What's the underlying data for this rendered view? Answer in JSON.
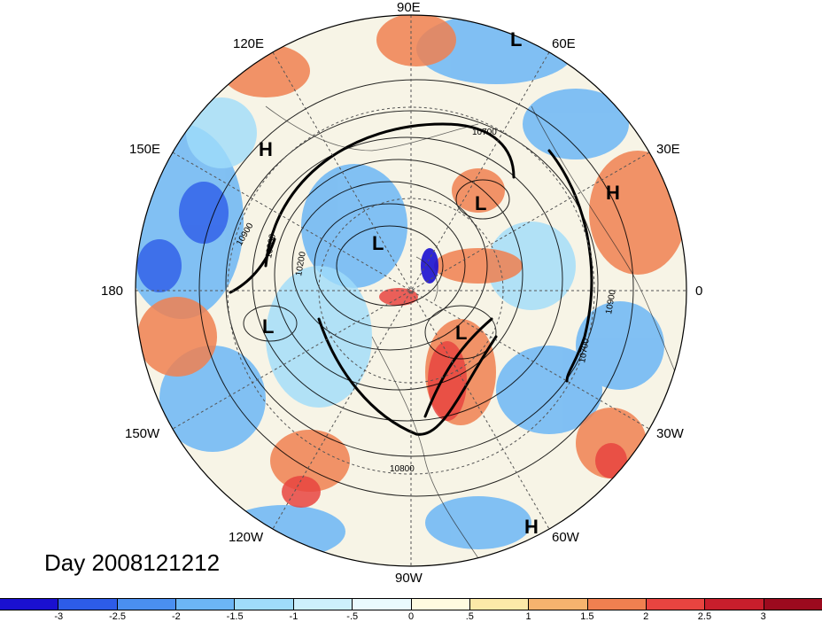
{
  "figure": {
    "day_label": "Day 2008121212",
    "longitude_labels": {
      "lon_90e": "90E",
      "lon_60e": "60E",
      "lon_30e": "30E",
      "lon_0": "0",
      "lon_30w": "30W",
      "lon_60w": "60W",
      "lon_90w": "90W",
      "lon_120w": "120W",
      "lon_150w": "150W",
      "lon_180": "180",
      "lon_150e": "150E",
      "lon_120e": "120E"
    },
    "pressure_centers": [
      {
        "type": "L",
        "label": "L"
      },
      {
        "type": "L",
        "label": "L"
      },
      {
        "type": "L",
        "label": "L"
      },
      {
        "type": "L",
        "label": "L"
      },
      {
        "type": "L",
        "label": "L"
      },
      {
        "type": "H",
        "label": "H"
      },
      {
        "type": "H",
        "label": "H"
      },
      {
        "type": "H",
        "label": "H"
      }
    ],
    "contour_labels": [
      "10700",
      "10900",
      "10800",
      "10200",
      "10800",
      "10900",
      "10700"
    ],
    "colorbar": {
      "colors": [
        "#1a10d0",
        "#2d5ce8",
        "#4a8ff0",
        "#6cb6f5",
        "#9fdcfa",
        "#cdf0fc",
        "#eafafd",
        "#fffbe0",
        "#fce9a8",
        "#f6b36e",
        "#f08050",
        "#e84440",
        "#c81e2c",
        "#9c0a1e"
      ],
      "tick_labels": [
        "-3",
        "-2.5",
        "-2",
        "-1.5",
        "-1",
        "-.5",
        "0",
        ".5",
        "1",
        "1.5",
        "2",
        "2.5",
        "3"
      ]
    }
  }
}
